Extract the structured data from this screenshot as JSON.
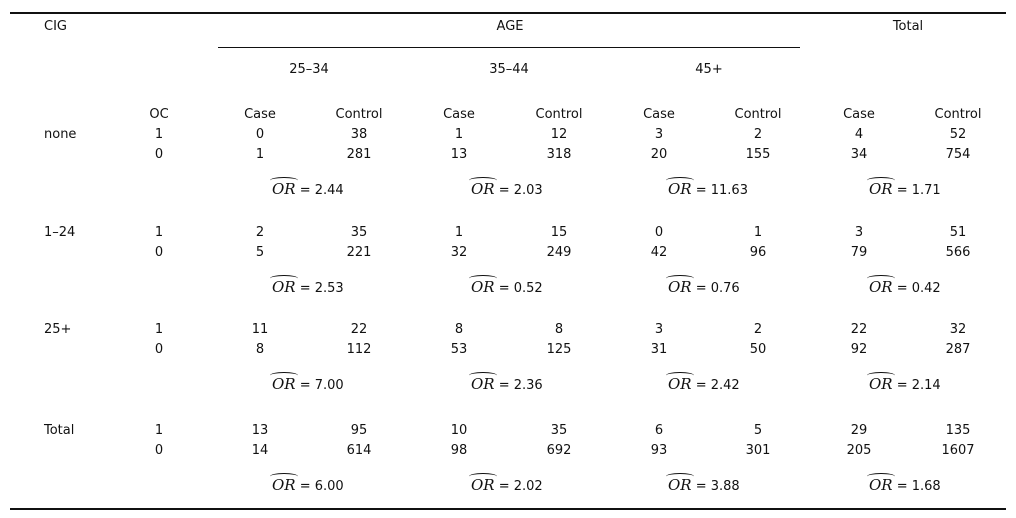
{
  "headers": {
    "cig": "CIG",
    "age": "AGE",
    "total": "Total",
    "oc": "OC",
    "case": "Case",
    "control": "Control",
    "age_groups": [
      "25–34",
      "35–44",
      "45+"
    ]
  },
  "or_symbol": "OR",
  "blocks": [
    {
      "cig": "none",
      "rows": [
        {
          "oc": "1",
          "cells": [
            "0",
            "38",
            "1",
            "12",
            "3",
            "2",
            "4",
            "52"
          ]
        },
        {
          "oc": "0",
          "cells": [
            "1",
            "281",
            "13",
            "318",
            "20",
            "155",
            "34",
            "754"
          ]
        }
      ],
      "or": [
        "= 2.44",
        "= 2.03",
        "= 11.63",
        "= 1.71"
      ]
    },
    {
      "cig": "1–24",
      "rows": [
        {
          "oc": "1",
          "cells": [
            "2",
            "35",
            "1",
            "15",
            "0",
            "1",
            "3",
            "51"
          ]
        },
        {
          "oc": "0",
          "cells": [
            "5",
            "221",
            "32",
            "249",
            "42",
            "96",
            "79",
            "566"
          ]
        }
      ],
      "or": [
        "= 2.53",
        "= 0.52",
        "= 0.76",
        "= 0.42"
      ]
    },
    {
      "cig": "25+",
      "rows": [
        {
          "oc": "1",
          "cells": [
            "11",
            "22",
            "8",
            "8",
            "3",
            "2",
            "22",
            "32"
          ]
        },
        {
          "oc": "0",
          "cells": [
            "8",
            "112",
            "53",
            "125",
            "31",
            "50",
            "92",
            "287"
          ]
        }
      ],
      "or": [
        "= 7.00",
        "= 2.36",
        "= 2.42",
        "= 2.14"
      ]
    },
    {
      "cig": "Total",
      "rows": [
        {
          "oc": "1",
          "cells": [
            "13",
            "95",
            "10",
            "35",
            "6",
            "5",
            "29",
            "135"
          ]
        },
        {
          "oc": "0",
          "cells": [
            "14",
            "614",
            "98",
            "692",
            "93",
            "301",
            "205",
            "1607"
          ]
        }
      ],
      "or": [
        "= 6.00",
        "= 2.02",
        "= 3.88",
        "= 1.68"
      ]
    }
  ]
}
